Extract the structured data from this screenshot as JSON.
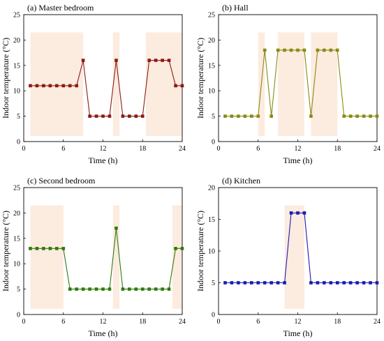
{
  "figure": {
    "xlabel": "Time (h)",
    "ylabel": "Indoor temperature (°C)"
  },
  "chart_data": [
    {
      "type": "line",
      "title": "(a) Master bedroom",
      "xlim": [
        0,
        24
      ],
      "ylim": [
        0,
        25
      ],
      "xticks": [
        0,
        6,
        12,
        18,
        24
      ],
      "yticks": [
        0,
        5,
        10,
        15,
        20,
        25
      ],
      "color": "#8b1a12",
      "shade_color": "#fcebdf",
      "shaded_periods": [
        [
          1,
          9
        ],
        [
          13.5,
          14.5
        ],
        [
          18.5,
          24
        ]
      ],
      "series": [
        {
          "x": [
            1,
            2,
            3,
            4,
            5,
            6,
            7,
            8,
            9,
            10,
            11,
            12,
            13,
            14,
            15,
            16,
            17,
            18,
            19,
            20,
            21,
            22,
            23,
            24
          ],
          "y": [
            11,
            11,
            11,
            11,
            11,
            11,
            11,
            11,
            16,
            5,
            5,
            5,
            5,
            16,
            5,
            5,
            5,
            5,
            16,
            16,
            16,
            16,
            11,
            11
          ]
        }
      ]
    },
    {
      "type": "line",
      "title": "(b) Hall",
      "xlim": [
        0,
        24
      ],
      "ylim": [
        0,
        25
      ],
      "xticks": [
        0,
        6,
        12,
        18,
        24
      ],
      "yticks": [
        0,
        5,
        10,
        15,
        20,
        25
      ],
      "color": "#8a8a14",
      "shade_color": "#fcebdf",
      "shaded_periods": [
        [
          6,
          7
        ],
        [
          9,
          13
        ],
        [
          14,
          18
        ]
      ],
      "series": [
        {
          "x": [
            1,
            2,
            3,
            4,
            5,
            6,
            7,
            8,
            9,
            10,
            11,
            12,
            13,
            14,
            15,
            16,
            17,
            18,
            19,
            20,
            21,
            22,
            23,
            24
          ],
          "y": [
            5,
            5,
            5,
            5,
            5,
            5,
            18,
            5,
            18,
            18,
            18,
            18,
            18,
            5,
            18,
            18,
            18,
            18,
            5,
            5,
            5,
            5,
            5,
            5
          ]
        }
      ]
    },
    {
      "type": "line",
      "title": "(c) Second bedroom",
      "xlim": [
        0,
        24
      ],
      "ylim": [
        0,
        25
      ],
      "xticks": [
        0,
        6,
        12,
        18,
        24
      ],
      "yticks": [
        0,
        5,
        10,
        15,
        20,
        25
      ],
      "color": "#2e7a0c",
      "shade_color": "#fcebdf",
      "shaded_periods": [
        [
          1,
          6
        ],
        [
          13.5,
          14.5
        ],
        [
          22.5,
          24
        ]
      ],
      "series": [
        {
          "x": [
            1,
            2,
            3,
            4,
            5,
            6,
            7,
            8,
            9,
            10,
            11,
            12,
            13,
            14,
            15,
            16,
            17,
            18,
            19,
            20,
            21,
            22,
            23,
            24
          ],
          "y": [
            13,
            13,
            13,
            13,
            13,
            13,
            5,
            5,
            5,
            5,
            5,
            5,
            5,
            17,
            5,
            5,
            5,
            5,
            5,
            5,
            5,
            5,
            13,
            13
          ]
        }
      ]
    },
    {
      "type": "line",
      "title": "(d) Kitchen",
      "xlim": [
        0,
        24
      ],
      "ylim": [
        0,
        20
      ],
      "xticks": [
        0,
        6,
        12,
        18,
        24
      ],
      "yticks": [
        0,
        5,
        10,
        15,
        20
      ],
      "color": "#1a1ab4",
      "shade_color": "#fcebdf",
      "shaded_periods": [
        [
          10,
          13
        ]
      ],
      "series": [
        {
          "x": [
            1,
            2,
            3,
            4,
            5,
            6,
            7,
            8,
            9,
            10,
            11,
            12,
            13,
            14,
            15,
            16,
            17,
            18,
            19,
            20,
            21,
            22,
            23,
            24
          ],
          "y": [
            5,
            5,
            5,
            5,
            5,
            5,
            5,
            5,
            5,
            5,
            16,
            16,
            16,
            5,
            5,
            5,
            5,
            5,
            5,
            5,
            5,
            5,
            5,
            5
          ]
        }
      ]
    }
  ]
}
